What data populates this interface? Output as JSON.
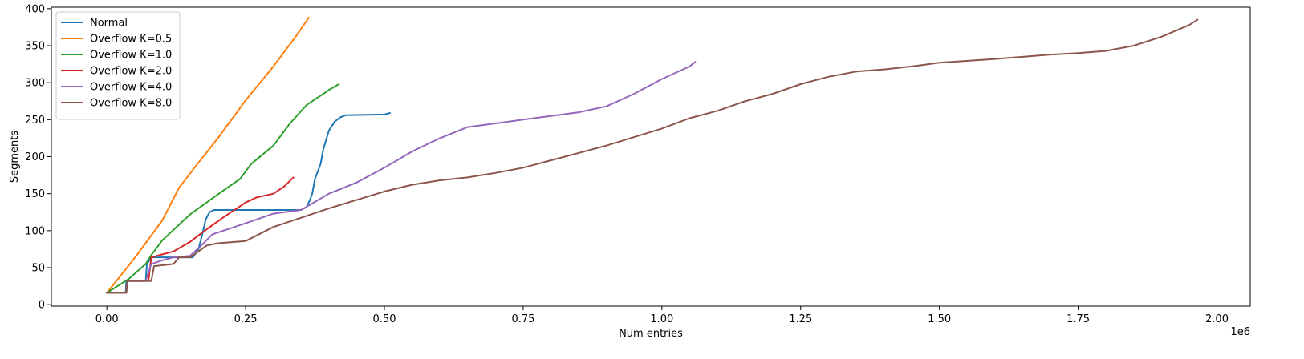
{
  "chart_data": {
    "type": "line",
    "title": "",
    "xlabel": "Num entries",
    "ylabel": "Segments",
    "x_offset_label": "1e6",
    "xlim": [
      -0.1,
      2.06
    ],
    "ylim": [
      -2,
      402
    ],
    "x_ticks": [
      0.0,
      0.25,
      0.5,
      0.75,
      1.0,
      1.25,
      1.5,
      1.75,
      2.0
    ],
    "x_tick_labels": [
      "0.00",
      "0.25",
      "0.50",
      "0.75",
      "1.00",
      "1.25",
      "1.50",
      "1.75",
      "2.00"
    ],
    "y_ticks": [
      0,
      50,
      100,
      150,
      200,
      250,
      300,
      350,
      400
    ],
    "y_tick_labels": [
      "0",
      "50",
      "100",
      "150",
      "200",
      "250",
      "300",
      "350",
      "400"
    ],
    "grid": false,
    "legend_position": "top-left",
    "series": [
      {
        "name": "Normal",
        "color": "#1f77b4",
        "x": [
          0.0,
          0.034,
          0.035,
          0.07,
          0.072,
          0.08,
          0.155,
          0.165,
          0.172,
          0.178,
          0.185,
          0.193,
          0.21,
          0.3,
          0.35,
          0.36,
          0.365,
          0.37,
          0.375,
          0.385,
          0.39,
          0.4,
          0.41,
          0.42,
          0.43,
          0.5,
          0.51
        ],
        "y": [
          16,
          16,
          32,
          32,
          55,
          64,
          64,
          75,
          95,
          115,
          125,
          128,
          128,
          128,
          128,
          132,
          140,
          150,
          170,
          190,
          210,
          235,
          247,
          253,
          256,
          257,
          259
        ]
      },
      {
        "name": "Overflow K=0.5",
        "color": "#ff7f0e",
        "x": [
          0.0,
          0.05,
          0.1,
          0.13,
          0.16,
          0.2,
          0.25,
          0.3,
          0.34,
          0.364
        ],
        "y": [
          16,
          63,
          114,
          158,
          187,
          225,
          276,
          322,
          362,
          388
        ]
      },
      {
        "name": "Overflow K=1.0",
        "color": "#2ca02c",
        "x": [
          0.0,
          0.04,
          0.07,
          0.08,
          0.1,
          0.15,
          0.2,
          0.24,
          0.26,
          0.3,
          0.33,
          0.36,
          0.4,
          0.418
        ],
        "y": [
          16,
          35,
          55,
          67,
          87,
          122,
          149,
          170,
          190,
          215,
          245,
          270,
          290,
          298
        ]
      },
      {
        "name": "Overflow K=2.0",
        "color": "#d62728",
        "x": [
          0.0,
          0.035,
          0.037,
          0.075,
          0.08,
          0.12,
          0.15,
          0.18,
          0.21,
          0.25,
          0.27,
          0.3,
          0.32,
          0.336
        ],
        "y": [
          16,
          16,
          32,
          32,
          64,
          72,
          85,
          102,
          118,
          138,
          145,
          150,
          160,
          172
        ]
      },
      {
        "name": "Overflow K=4.0",
        "color": "#9467bd",
        "x": [
          0.0,
          0.035,
          0.037,
          0.07,
          0.08,
          0.1,
          0.12,
          0.15,
          0.17,
          0.19,
          0.25,
          0.3,
          0.35,
          0.4,
          0.45,
          0.5,
          0.55,
          0.6,
          0.65,
          0.7,
          0.75,
          0.8,
          0.85,
          0.9,
          0.95,
          1.0,
          1.05,
          1.06
        ],
        "y": [
          16,
          16,
          32,
          32,
          55,
          60,
          64,
          66,
          80,
          95,
          110,
          123,
          128,
          150,
          165,
          185,
          207,
          225,
          240,
          245,
          250,
          255,
          260,
          268,
          285,
          305,
          322,
          328
        ]
      },
      {
        "name": "Overflow K=8.0",
        "color": "#8c564b",
        "x": [
          0.0,
          0.035,
          0.037,
          0.08,
          0.085,
          0.12,
          0.13,
          0.15,
          0.18,
          0.2,
          0.25,
          0.3,
          0.4,
          0.5,
          0.55,
          0.6,
          0.65,
          0.7,
          0.75,
          0.8,
          0.9,
          1.0,
          1.05,
          1.1,
          1.15,
          1.2,
          1.25,
          1.3,
          1.35,
          1.4,
          1.45,
          1.5,
          1.6,
          1.7,
          1.75,
          1.8,
          1.85,
          1.9,
          1.95,
          1.965
        ],
        "y": [
          16,
          16,
          32,
          32,
          52,
          55,
          64,
          64,
          80,
          83,
          86,
          105,
          130,
          153,
          162,
          168,
          172,
          178,
          185,
          195,
          215,
          238,
          252,
          262,
          275,
          285,
          298,
          308,
          315,
          318,
          322,
          327,
          332,
          338,
          340,
          343,
          350,
          362,
          378,
          385
        ]
      }
    ]
  }
}
